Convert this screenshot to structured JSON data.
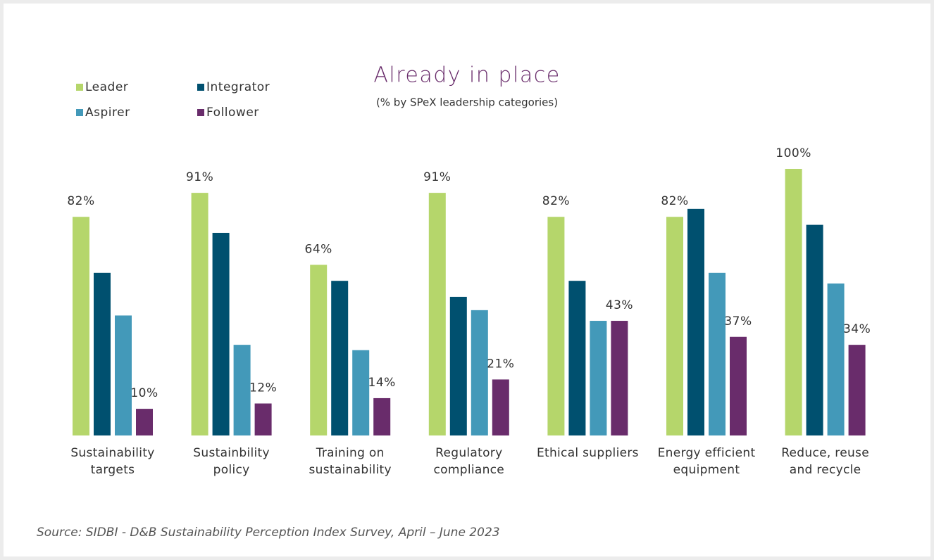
{
  "chart_data": {
    "type": "bar",
    "title": "Already in place",
    "subtitle": "(% by SPeX leadership categories)",
    "source": "Source: SIDBI - D&B Sustainability Perception Index Survey, April – June 2023",
    "categories": [
      "Sustainability\ntargets",
      "Sustainbility\npolicy",
      "Training on\nsustainability",
      "Regulatory\ncompliance",
      "Ethical suppliers",
      "Energy efficient\nequipment",
      "Reduce, reuse\nand recycle"
    ],
    "series": [
      {
        "name": "Leader",
        "color": "#b5d66b",
        "values": [
          82,
          91,
          64,
          91,
          82,
          82,
          100
        ],
        "value_labels": [
          "82%",
          "91%",
          "64%",
          "91%",
          "82%",
          "82%",
          "100%"
        ]
      },
      {
        "name": "Integrator",
        "color": "#00506f",
        "values": [
          61,
          76,
          58,
          52,
          58,
          85,
          79
        ]
      },
      {
        "name": "Aspirer",
        "color": "#4399b9",
        "values": [
          45,
          34,
          32,
          47,
          43,
          61,
          57
        ]
      },
      {
        "name": "Follower",
        "color": "#692c6b",
        "values": [
          10,
          12,
          14,
          21,
          43,
          37,
          34
        ],
        "value_labels": [
          "10%",
          "12%",
          "14%",
          "21%",
          "43%",
          "37%",
          "34%"
        ]
      }
    ],
    "ylim": [
      0,
      100
    ]
  }
}
